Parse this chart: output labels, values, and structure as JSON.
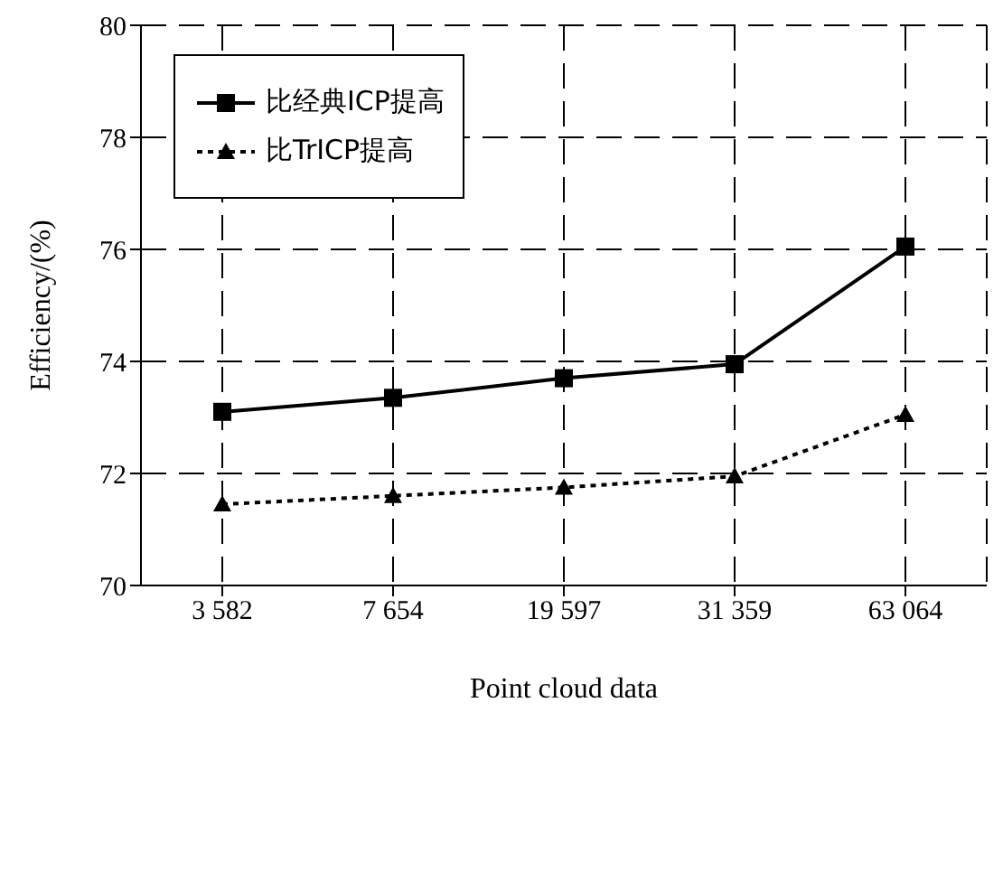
{
  "chart_data": {
    "type": "line",
    "xlabel": "Point cloud data",
    "ylabel": "Efficiency/(%)",
    "categories": [
      "3 582",
      "7 654",
      "19 597",
      "31 359",
      "63 064"
    ],
    "series": [
      {
        "name": "比经典ICP提高",
        "color": "#000000",
        "marker": "square",
        "line_style": "solid",
        "values": [
          73.1,
          73.35,
          73.7,
          73.95,
          76.05
        ]
      },
      {
        "name": "比TrICP提高",
        "color": "#000000",
        "marker": "triangle",
        "line_style": "dotted",
        "values": [
          71.45,
          71.6,
          71.75,
          71.95,
          73.05
        ]
      }
    ],
    "ylim": [
      70,
      80
    ],
    "yticks": [
      70,
      72,
      74,
      76,
      78,
      80
    ],
    "grid": true,
    "legend": "top left"
  }
}
